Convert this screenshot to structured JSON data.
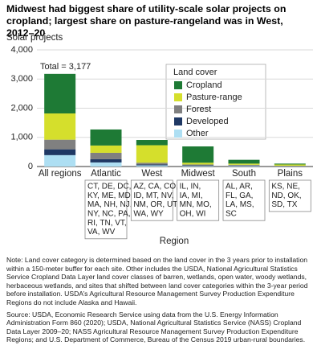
{
  "chart_data": {
    "type": "stacked-bar",
    "title": "Midwest had biggest share of utility-scale solar projects on cropland; largest share on pasture-rangeland was in West, 2012–20",
    "y_label": "Solar projects",
    "x_label": "Region",
    "annotation": "Total = 3,177",
    "legend_title": "Land cover",
    "categories": [
      "All regions",
      "Atlantic",
      "West",
      "Midwest",
      "South",
      "Plains"
    ],
    "states": [
      null,
      [
        "CT, DE, DC,",
        "KY, ME, MD,",
        "MA, NH, NJ,",
        "NY, NC, PA,",
        "RI, TN, VT,",
        "VA, WV"
      ],
      [
        "AZ, CA, CO,",
        "ID, MT, NV,",
        "NM, OR, UT,",
        "WA, WY"
      ],
      [
        "IL, IN,",
        "IA, MI,",
        "MN, MO,",
        "OH, WI"
      ],
      [
        "AL, AR,",
        "FL, GA,",
        "LA, MS,",
        "SC"
      ],
      [
        "KS, NE,",
        "ND, OK,",
        "SD, TX"
      ]
    ],
    "series": [
      {
        "name": "Other",
        "color": "#aedff3",
        "values": [
          390,
          140,
          40,
          20,
          20,
          10
        ]
      },
      {
        "name": "Developed",
        "color": "#1f3864",
        "values": [
          200,
          110,
          30,
          20,
          10,
          5
        ]
      },
      {
        "name": "Forest",
        "color": "#808080",
        "values": [
          330,
          220,
          60,
          30,
          30,
          10
        ]
      },
      {
        "name": "Pasture-range",
        "color": "#d5df2c",
        "values": [
          900,
          250,
          600,
          60,
          40,
          45
        ]
      },
      {
        "name": "Cropland",
        "color": "#1e7a35",
        "values": [
          1357,
          550,
          180,
          560,
          130,
          30
        ]
      }
    ],
    "ylim": [
      0,
      4000
    ],
    "yticks": [
      0,
      {
        "value": 1000,
        "label": "1,000"
      },
      {
        "value": 2000,
        "label": "2,000"
      },
      {
        "value": 3000,
        "label": "3,000"
      },
      {
        "value": 4000,
        "label": "4,000"
      }
    ],
    "grid": true,
    "note": "Note: Land cover category is determined based on the land cover in the 3 years prior to installation within a 150-meter buffer for each site. Other includes the USDA, National Agricultural Statistics Service Cropland Data Layer land cover classes of barren, wetlands, open water, woody wetlands, herbaceous wetlands, and sites that shifted between land cover categories within the 3-year period before installation. USDA’s Agricultural Resource Management Survey Production Expenditure Regions do not include Alaska and Hawaii.",
    "source": "Source: USDA, Economic Research Service using data from the U.S. Energy Information Administration Form 860 (2020); USDA, National Agricultural Statistics Service (NASS) Cropland Data Layer 2009–20; NASS Agricultural Resource Management Survey Production Expenditure Regions; and U.S. Department of Commerce, Bureau of the Census 2019 urban-rural boundaries."
  }
}
